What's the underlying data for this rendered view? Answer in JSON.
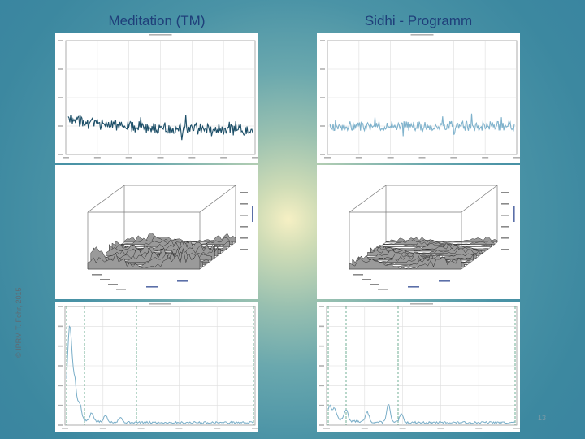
{
  "slide": {
    "left_title": "Meditation (TM)",
    "right_title": "Sidhi - Programm",
    "copyright": "© IPRM T. Fehr, 2015",
    "page_number": "13"
  },
  "colors": {
    "series_left": "#1d4f68",
    "series_right": "#7fb2cc",
    "spectrum_left": "#7aaec8",
    "spectrum_right": "#7aaec8",
    "band_line": "#4f9c7c",
    "title_color": "#1f3f7a"
  }
}
